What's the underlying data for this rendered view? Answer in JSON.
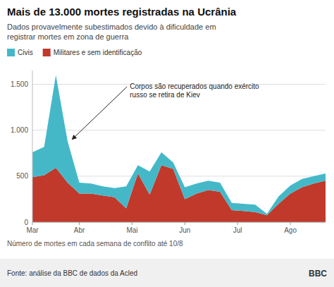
{
  "chart_data": {
    "type": "area",
    "title": "Mais de 13.000 mortes registradas na Ucrânia",
    "subtitle": "Dados provavelmente subestimados devido à dificuldade em\nregistrar mortes em zona de guerra",
    "xlabel": "Número de mortes em cada semana de conflito até 10/8",
    "source": "Fonte: análise da BBC de dados da Acled",
    "credit": "BBC",
    "annotations": [
      {
        "text": "Corpos são recuperados quando exército\nrusso se retira de Kiev",
        "x": 3.2,
        "y": 900
      }
    ],
    "x": [
      0,
      1,
      2,
      3,
      4,
      5,
      6,
      7,
      8,
      9,
      10,
      11,
      12,
      13,
      14,
      15,
      16,
      17,
      18,
      19,
      20,
      21,
      22,
      23,
      24,
      25
    ],
    "series": [
      {
        "name": "Militares e sem identificação",
        "color": "#c0392b",
        "values": [
          490,
          510,
          590,
          430,
          310,
          310,
          290,
          270,
          150,
          530,
          300,
          620,
          580,
          250,
          310,
          350,
          330,
          130,
          120,
          110,
          75,
          200,
          310,
          380,
          420,
          450
        ]
      },
      {
        "name": "Civis",
        "color": "#45b8c8",
        "values": [
          270,
          310,
          1010,
          450,
          120,
          110,
          100,
          100,
          240,
          90,
          250,
          140,
          70,
          130,
          110,
          100,
          100,
          80,
          80,
          80,
          15,
          80,
          90,
          90,
          80,
          80
        ]
      }
    ],
    "stacked": true,
    "xlim": [
      0,
      25
    ],
    "xticks": [
      {
        "value": 0,
        "label": "Mar"
      },
      {
        "value": 4,
        "label": "Abr"
      },
      {
        "value": 8.5,
        "label": "Mai"
      },
      {
        "value": 13,
        "label": "Jun"
      },
      {
        "value": 17.5,
        "label": "Jul"
      },
      {
        "value": 22,
        "label": "Ago"
      }
    ],
    "ylim": [
      0,
      1650
    ],
    "yticks": [
      0,
      500,
      {
        "value": 1000,
        "label": "1.000"
      },
      {
        "value": 1500,
        "label": "1.500"
      }
    ],
    "grid": true,
    "legend": "top"
  }
}
